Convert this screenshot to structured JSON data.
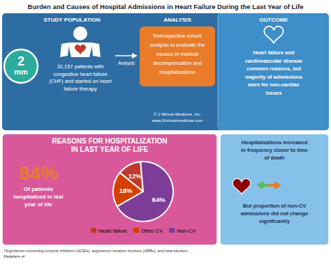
{
  "chart_data": {
    "type": "pie",
    "title": "Burden and Causes of Hospital Admissions in Heart Failure During the Last Year of Life",
    "categories": [
      "Heart failure",
      "Other CV",
      "Non-CV"
    ],
    "values": [
      12,
      18,
      64
    ],
    "value_labels": [
      "12%",
      "18%",
      "64%"
    ],
    "colors": [
      "#c0392b",
      "#d44000",
      "#7d3c98"
    ],
    "data_labels": true,
    "legend": "bottom",
    "annotations": [
      "STUDY POPULATION",
      "ANALYSIS",
      "OUTCOME",
      "2",
      "mm",
      "32,157 patients with\ncongestive heart failure\n(CHF) and started on heart\nfailure therapy",
      "Analysis",
      "Retrospective cohort\nanalysis to evaluate the\ncauses of medical\ndecompensation and\nhospitalizations",
      "© 2 Minute Medicine, Inc.\nwww.2minutemedicine.com",
      "Heart failure and\ncardiovascular disease\ncommon reasons, but\nmajority of admissions\nwere for non-cardiac\nissues",
      "REASONS FOR HOSPITALIZATION\nIN LAST YEAR OF LIFE",
      "84%",
      "Of patients\nhospitalized in last\nyear of life",
      "Hospitalizations increased\nin frequency closer to time\nof death",
      "But proportion of non-CV\nadmissions did not change\nsignificantly",
      "*Angiotensin-converting enzyme inhibitors (ACEIs), angiotensin receptor blockers (ARBs), and beta blockers\nMadelaire et"
    ]
  }
}
